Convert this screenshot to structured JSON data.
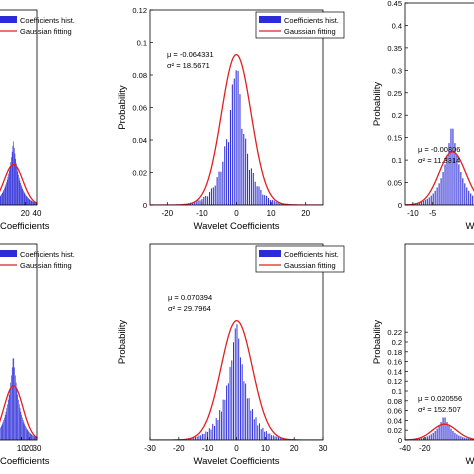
{
  "chart_data": [
    {
      "type": "bar",
      "panel": "top-left (cropped)",
      "ylim": [
        0,
        0.12
      ],
      "xlim": [
        -40,
        40
      ],
      "x_ticks": [
        "20",
        "40"
      ],
      "y_ticks": [],
      "xlabel": "Coefficients",
      "ylabel": "",
      "legend": [
        "Coefficients hist.",
        "Gaussian fitting"
      ],
      "legend_position": "top-right",
      "gauss": {
        "mu": 0,
        "sigma": 16
      },
      "annotation": [
        "",
        ""
      ]
    },
    {
      "type": "bar",
      "panel": "top-middle",
      "xlim": [
        -25,
        25
      ],
      "ylim": [
        0,
        0.12
      ],
      "x_ticks": [
        "-20",
        "-10",
        "0",
        "10",
        "20"
      ],
      "y_ticks": [
        "0",
        "0.02",
        "0.04",
        "0.06",
        "0.08",
        "0.1",
        "0.12"
      ],
      "xlabel": "Wavelet Coefficients",
      "ylabel": "Probability",
      "legend": [
        "Coefficients hist.",
        "Gaussian fitting"
      ],
      "legend_position": "top-right",
      "gauss": {
        "mu": -0.064331,
        "sigma": 4.309
      },
      "annotation": [
        "μ = -0.064331",
        "σ² = 18.5671"
      ]
    },
    {
      "type": "bar",
      "panel": "top-right (cropped)",
      "xlim": [
        -12,
        8
      ],
      "ylim": [
        0,
        0.45
      ],
      "x_ticks": [
        "-10",
        "-5"
      ],
      "y_ticks": [
        "0",
        "0.05",
        "0.1",
        "0.15",
        "0.2",
        "0.25",
        "0.3",
        "0.35",
        "0.4",
        "0.45"
      ],
      "xlabel": "W",
      "ylabel": "Probability",
      "gauss": {
        "mu": 0,
        "sigma": 3.37
      },
      "annotation": [
        "μ = -0.00806",
        "σ² = 11.3314"
      ]
    },
    {
      "type": "bar",
      "panel": "bottom-left (cropped)",
      "xlim": [
        -30,
        30
      ],
      "ylim": [
        0,
        0.12
      ],
      "x_ticks": [
        "10",
        "20",
        "30"
      ],
      "y_ticks": [],
      "xlabel": "Coefficients",
      "ylabel": "",
      "legend": [
        "Coefficients hist.",
        "Gaussian fitting"
      ],
      "legend_position": "top-right",
      "gauss": {
        "mu": 0,
        "sigma": 12
      },
      "annotation": [
        "",
        ""
      ]
    },
    {
      "type": "bar",
      "panel": "bottom-middle",
      "xlim": [
        -30,
        30
      ],
      "ylim": [
        0,
        0.12
      ],
      "x_ticks": [
        "-30",
        "-20",
        "-10",
        "0",
        "10",
        "20",
        "30"
      ],
      "y_ticks": [],
      "xlabel": "Wavelet Coefficients",
      "ylabel": "Probability",
      "legend": [
        "Coefficients hist.",
        "Gaussian fitting"
      ],
      "legend_position": "top-right",
      "gauss": {
        "mu": 0.070394,
        "sigma": 5.458
      },
      "annotation": [
        "μ = 0.070394",
        "σ² = 29.7964"
      ]
    },
    {
      "type": "bar",
      "panel": "bottom-right (cropped)",
      "xlim": [
        -40,
        40
      ],
      "ylim": [
        0,
        0.4
      ],
      "x_ticks": [
        "-40",
        "-20"
      ],
      "y_ticks": [
        "0",
        "0.02",
        "0.04",
        "0.06",
        "0.08",
        "0.1",
        "0.12",
        "0.14",
        "0.16",
        "0.18",
        "0.2",
        "0.22"
      ],
      "xlabel": "W",
      "ylabel": "Probability",
      "gauss": {
        "mu": 0,
        "sigma": 12.35
      },
      "annotation": [
        "μ = 0.020556",
        "σ² = 152.507"
      ]
    }
  ],
  "colors": {
    "hist": "#2b2bd9",
    "fit": "#e02020",
    "axis": "#000000"
  }
}
